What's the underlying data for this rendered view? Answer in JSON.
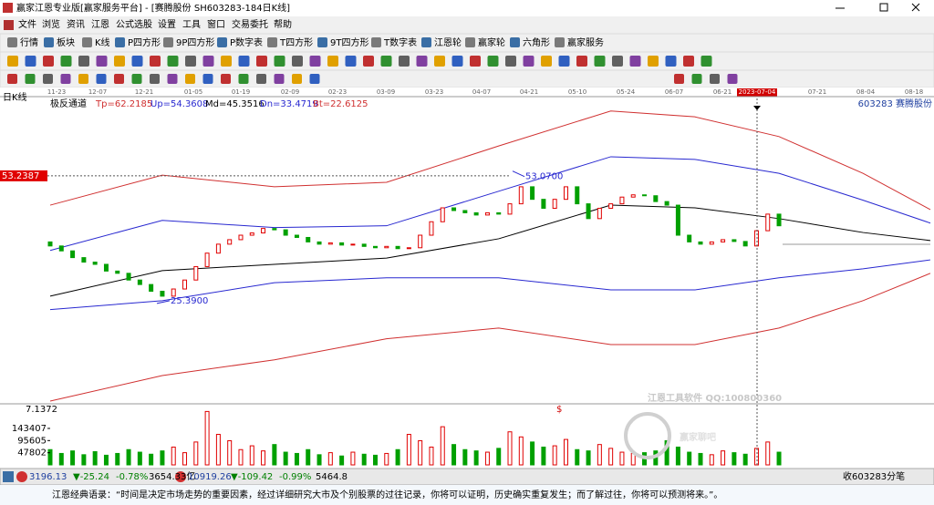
{
  "window": {
    "title": "赢家江恩专业版[赢家服务平台] - [赛腾股份  SH603283-184日K线]"
  },
  "menu": [
    "文件",
    "浏览",
    "资讯",
    "江恩",
    "公式选股",
    "设置",
    "工具",
    "窗口",
    "交易委托",
    "帮助"
  ],
  "toolbar": [
    "行情",
    "板块",
    "K线",
    "P四方形",
    "9P四方形",
    "P数字表",
    "T四方形",
    "9T四方形",
    "T数字表",
    "江恩轮",
    "赢家轮",
    "六角形",
    "赢家服务"
  ],
  "chart": {
    "period_label": "日K线",
    "indicator": "极反通道",
    "params": [
      "Tp=62.2185",
      "Up=54.3608",
      "Md=45.3516",
      "Dn=33.4719",
      "Bt=22.6125"
    ],
    "stock": "603283 赛腾股份",
    "dates": [
      "11-23",
      "12-07",
      "12-21",
      "01-05",
      "01-19",
      "02-09",
      "02-23",
      "03-09",
      "03-23",
      "04-07",
      "04-21",
      "05-10",
      "05-24",
      "06-07",
      "06-21",
      "07-21",
      "08-04",
      "08-18"
    ],
    "cursor_date": "2023-07-04",
    "cursor_price": 53.2387,
    "high_label": {
      "value": 53.07,
      "label": "53.0700"
    },
    "low_label": {
      "value": 25.39,
      "label": "25.3900"
    },
    "event_marker": "$",
    "xlim": [
      0,
      157
    ],
    "ylim": [
      3,
      70.5
    ],
    "candles": {
      "x": [
        0,
        2,
        4,
        6,
        8,
        10,
        12,
        14,
        16,
        18,
        20,
        22,
        24,
        26,
        28,
        30,
        32,
        34,
        36,
        38,
        40,
        42,
        44,
        46,
        48,
        50,
        52,
        54,
        56,
        58,
        60,
        62,
        64,
        66,
        68,
        70,
        72,
        74,
        76,
        78,
        80,
        82,
        84,
        86,
        88,
        90,
        92,
        94,
        96,
        98,
        100,
        102,
        104,
        106,
        108,
        110,
        112,
        114,
        116,
        118,
        120,
        122,
        124,
        126,
        128,
        130
      ],
      "open": [
        38.5,
        37.6,
        36.5,
        35,
        34,
        33.5,
        32,
        31.5,
        30,
        29,
        27.5,
        26.4,
        28,
        30,
        33,
        36,
        38,
        39,
        40,
        40.5,
        41.5,
        41.2,
        40,
        39.5,
        38.5,
        38,
        38.3,
        37.8,
        38,
        37.5,
        37.2,
        37.5,
        37,
        37.2,
        40,
        43,
        46.1,
        45.5,
        45,
        44.5,
        45,
        44.7,
        47,
        50.8,
        48,
        46,
        48,
        50.8,
        47,
        43.7,
        46,
        47,
        48.5,
        49,
        48.8,
        47.5,
        46.7,
        40,
        38.5,
        38,
        38.5,
        39,
        38.6,
        37.6,
        41,
        44.7
      ],
      "close": [
        37.6,
        36.5,
        35,
        34,
        33.5,
        32,
        31.5,
        30,
        29,
        27.5,
        26.4,
        28,
        30,
        33,
        36,
        38,
        39,
        40,
        40.5,
        41.5,
        41.2,
        40,
        39.5,
        38.5,
        38,
        38.3,
        37.8,
        38,
        37.5,
        37.2,
        37.5,
        37,
        37.2,
        40,
        43,
        46.1,
        45.5,
        45,
        44.5,
        45,
        44.7,
        47,
        50.8,
        48,
        46,
        48,
        50.8,
        47,
        43.7,
        46,
        47,
        48.5,
        49,
        48.8,
        47.5,
        46.7,
        40,
        38.5,
        38,
        38.5,
        39,
        38.6,
        37.6,
        41,
        44.7,
        42.1
      ],
      "up_color": "#e00000",
      "down_color": "#00a000"
    },
    "band_x": [
      0,
      20,
      40,
      60,
      80,
      100,
      115,
      130,
      145,
      157
    ],
    "bands": [
      {
        "color": "#d03030",
        "values": [
          46.7,
          53.4,
          50.8,
          51.8,
          59.9,
          67.7,
          66.4,
          62.0,
          53.8,
          45.7
        ]
      },
      {
        "color": "#2828d0",
        "values": [
          36.6,
          43.3,
          41.7,
          42.1,
          49.8,
          57.5,
          56.9,
          53.8,
          47.8,
          42.7
        ]
      },
      {
        "color": "#000000",
        "values": [
          26.4,
          32.1,
          33.5,
          34.9,
          39.2,
          46.7,
          46.1,
          43.7,
          40.6,
          38.8
        ]
      },
      {
        "color": "#2828d0",
        "values": [
          23.4,
          25.4,
          29.4,
          30.5,
          30.5,
          27.8,
          27.8,
          30.5,
          32.5,
          34.5
        ]
      },
      {
        "color": "#d03030",
        "values": [
          3.0,
          8.7,
          12.2,
          16.9,
          19.3,
          15.6,
          15.6,
          19.3,
          25.4,
          31.5
        ]
      }
    ],
    "volume": {
      "top_label": 7.1372,
      "ylim": [
        0,
        215000
      ],
      "yticks": [
        47802,
        95605,
        143407
      ],
      "values": [
        60000,
        45000,
        55000,
        40000,
        52000,
        38000,
        45000,
        60000,
        50000,
        42000,
        55000,
        70000,
        48000,
        90000,
        210000,
        120000,
        95000,
        60000,
        75000,
        55000,
        80000,
        50000,
        45000,
        60000,
        40000,
        48000,
        35000,
        50000,
        42000,
        38000,
        45000,
        60000,
        120000,
        95000,
        70000,
        150000,
        80000,
        60000,
        55000,
        50000,
        65000,
        130000,
        110000,
        90000,
        70000,
        75000,
        100000,
        60000,
        55000,
        80000,
        65000,
        50000,
        45000,
        48000,
        55000,
        95000,
        70000,
        50000,
        45000,
        40000,
        55000,
        48000,
        42000,
        65000,
        90000,
        50000
      ]
    }
  },
  "watermark": [
    "江恩工具软件  QQ:100800360",
    "赢家聊吧"
  ],
  "status": [
    "3196.13",
    "▼-25.24",
    "-0.78%",
    "3654.33亿",
    "10919.26",
    "▼-109.42",
    "-0.99%",
    "5464.8",
    "收603283分笔"
  ],
  "footer": "江恩经典语录：“时间是决定市场走势的重要因素，经过详细研究大市及个别股票的过往记录，你将可以证明，历史确实重复发生；而了解过往，你将可以预测将来。”。"
}
